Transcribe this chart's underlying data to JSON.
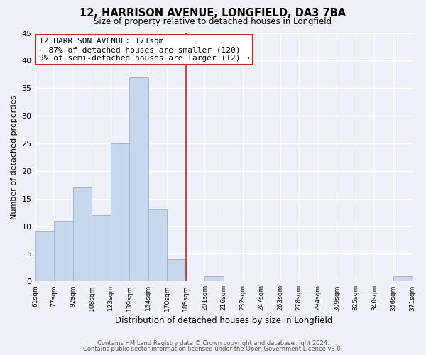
{
  "title": "12, HARRISON AVENUE, LONGFIELD, DA3 7BA",
  "subtitle": "Size of property relative to detached houses in Longfield",
  "xlabel": "Distribution of detached houses by size in Longfield",
  "ylabel": "Number of detached properties",
  "footer_lines": [
    "Contains HM Land Registry data © Crown copyright and database right 2024.",
    "Contains public sector information licensed under the Open Government Licence v3.0."
  ],
  "bin_labels": [
    "61sqm",
    "77sqm",
    "92sqm",
    "108sqm",
    "123sqm",
    "139sqm",
    "154sqm",
    "170sqm",
    "185sqm",
    "201sqm",
    "216sqm",
    "232sqm",
    "247sqm",
    "263sqm",
    "278sqm",
    "294sqm",
    "309sqm",
    "325sqm",
    "340sqm",
    "356sqm",
    "371sqm"
  ],
  "bar_values": [
    9,
    11,
    17,
    12,
    25,
    37,
    13,
    4,
    0,
    1,
    0,
    0,
    0,
    0,
    0,
    0,
    0,
    0,
    0,
    1
  ],
  "bar_color": "#c8d8ec",
  "bar_edge_color": "#a0b8cc",
  "ylim": [
    0,
    45
  ],
  "yticks": [
    0,
    5,
    10,
    15,
    20,
    25,
    30,
    35,
    40,
    45
  ],
  "vline_color": "#cc2222",
  "annotation_title": "12 HARRISON AVENUE: 171sqm",
  "annotation_line1": "← 87% of detached houses are smaller (120)",
  "annotation_line2": "9% of semi-detached houses are larger (12) →",
  "background_color": "#eef2f8"
}
